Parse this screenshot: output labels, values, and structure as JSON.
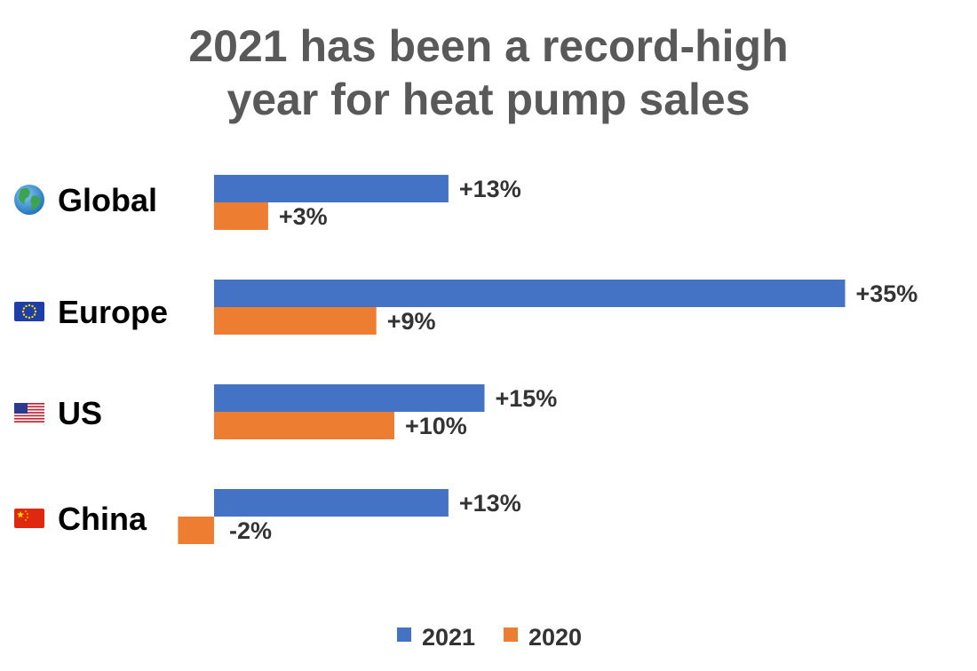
{
  "chart_data": {
    "type": "bar",
    "orientation": "horizontal",
    "title": [
      "2021 has been a record-high",
      "year for heat pump sales"
    ],
    "categories": [
      "Global",
      "Europe",
      "US",
      "China"
    ],
    "category_icons": [
      "globe-icon",
      "eu-flag-icon",
      "us-flag-icon",
      "china-flag-icon"
    ],
    "series": [
      {
        "name": "2021",
        "color": "#4472C4",
        "values": [
          13,
          35,
          15,
          13
        ],
        "labels": [
          "+13%",
          "+35%",
          "+15%",
          "+13%"
        ]
      },
      {
        "name": "2020",
        "color": "#ED7D31",
        "values": [
          3,
          9,
          10,
          -2
        ],
        "labels": [
          "+3%",
          "+9%",
          "+10%",
          "-2%"
        ]
      }
    ],
    "xlim": [
      -2,
      35
    ],
    "grid": false,
    "legend_position": "bottom"
  }
}
